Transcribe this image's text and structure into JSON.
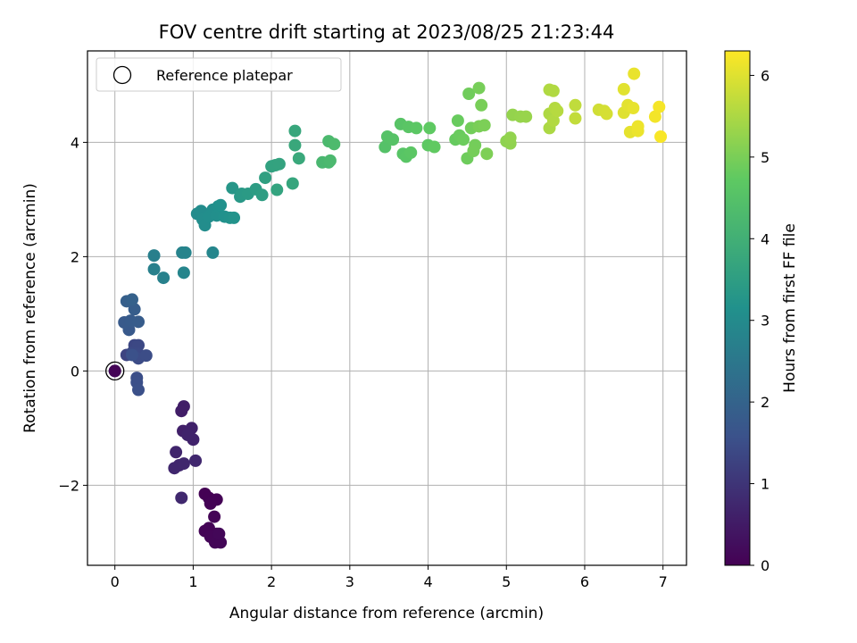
{
  "chart_data": {
    "type": "scatter",
    "title": "FOV centre drift starting at 2023/08/25 21:23:44",
    "xlabel": "Angular distance from reference (arcmin)",
    "ylabel": "Rotation from reference (arcmin)",
    "xlim": [
      -0.35,
      7.3
    ],
    "ylim": [
      -3.4,
      5.6
    ],
    "xticks": [
      0,
      1,
      2,
      3,
      4,
      5,
      6,
      7
    ],
    "yticks": [
      -2,
      0,
      2,
      4
    ],
    "xtick_labels": [
      "0",
      "1",
      "2",
      "3",
      "4",
      "5",
      "6",
      "7"
    ],
    "ytick_labels": [
      "−2",
      "0",
      "2",
      "4"
    ],
    "grid": true,
    "colormap": "viridis",
    "colormap_stops": [
      "#440154",
      "#3b528b",
      "#21918c",
      "#5ec962",
      "#fde725"
    ],
    "colorbar": {
      "label": "Hours from first FF file",
      "range": [
        0,
        6.3
      ],
      "ticks": [
        0,
        1,
        2,
        3,
        4,
        5,
        6
      ],
      "tick_labels": [
        "0",
        "1",
        "2",
        "3",
        "4",
        "5",
        "6"
      ]
    },
    "legend": {
      "entries": [
        "Reference platepar"
      ],
      "placement": "top-left"
    },
    "reference_point": {
      "x": 0,
      "y": 0,
      "t": 0.05
    },
    "points": [
      {
        "x": 1.15,
        "y": -2.15,
        "t": 0.0
      },
      {
        "x": 1.2,
        "y": -2.22,
        "t": 0.0
      },
      {
        "x": 1.3,
        "y": -2.25,
        "t": 0.02
      },
      {
        "x": 1.22,
        "y": -2.32,
        "t": 0.03
      },
      {
        "x": 1.27,
        "y": -2.55,
        "t": 0.05
      },
      {
        "x": 1.15,
        "y": -2.8,
        "t": 0.05
      },
      {
        "x": 1.2,
        "y": -2.75,
        "t": 0.06
      },
      {
        "x": 1.3,
        "y": -2.85,
        "t": 0.07
      },
      {
        "x": 1.22,
        "y": -2.9,
        "t": 0.08
      },
      {
        "x": 1.28,
        "y": -3.0,
        "t": 0.1
      },
      {
        "x": 1.35,
        "y": -3.0,
        "t": 0.1
      },
      {
        "x": 1.33,
        "y": -2.85,
        "t": 0.12
      },
      {
        "x": 0.88,
        "y": -0.62,
        "t": 0.55
      },
      {
        "x": 0.85,
        "y": -0.7,
        "t": 0.55
      },
      {
        "x": 0.87,
        "y": -1.05,
        "t": 0.6
      },
      {
        "x": 0.95,
        "y": -1.05,
        "t": 0.62
      },
      {
        "x": 0.98,
        "y": -1.0,
        "t": 0.63
      },
      {
        "x": 1.0,
        "y": -1.2,
        "t": 0.65
      },
      {
        "x": 0.93,
        "y": -1.12,
        "t": 0.66
      },
      {
        "x": 0.78,
        "y": -1.42,
        "t": 0.7
      },
      {
        "x": 0.82,
        "y": -1.65,
        "t": 0.72
      },
      {
        "x": 0.76,
        "y": -1.7,
        "t": 0.72
      },
      {
        "x": 0.88,
        "y": -1.62,
        "t": 0.73
      },
      {
        "x": 1.03,
        "y": -1.57,
        "t": 0.74
      },
      {
        "x": 0.85,
        "y": -2.22,
        "t": 0.75
      },
      {
        "x": 0.0,
        "y": 0.0,
        "t": 1.2
      },
      {
        "x": 0.15,
        "y": 0.28,
        "t": 1.3
      },
      {
        "x": 0.25,
        "y": 0.45,
        "t": 1.35
      },
      {
        "x": 0.3,
        "y": 0.45,
        "t": 1.38
      },
      {
        "x": 0.22,
        "y": 0.32,
        "t": 1.4
      },
      {
        "x": 0.3,
        "y": 0.3,
        "t": 1.42
      },
      {
        "x": 0.3,
        "y": 0.22,
        "t": 1.45
      },
      {
        "x": 0.4,
        "y": 0.27,
        "t": 1.47
      },
      {
        "x": 0.28,
        "y": -0.12,
        "t": 1.5
      },
      {
        "x": 0.28,
        "y": -0.2,
        "t": 1.52
      },
      {
        "x": 0.3,
        "y": -0.33,
        "t": 1.53
      },
      {
        "x": 0.22,
        "y": 0.28,
        "t": 1.55
      },
      {
        "x": 0.18,
        "y": 0.72,
        "t": 1.75
      },
      {
        "x": 0.12,
        "y": 0.85,
        "t": 1.78
      },
      {
        "x": 0.2,
        "y": 0.88,
        "t": 1.8
      },
      {
        "x": 0.3,
        "y": 0.86,
        "t": 1.82
      },
      {
        "x": 0.25,
        "y": 1.08,
        "t": 1.85
      },
      {
        "x": 0.15,
        "y": 1.22,
        "t": 1.9
      },
      {
        "x": 0.22,
        "y": 1.25,
        "t": 1.95
      },
      {
        "x": 0.5,
        "y": 2.02,
        "t": 2.7
      },
      {
        "x": 0.5,
        "y": 1.78,
        "t": 2.72
      },
      {
        "x": 0.62,
        "y": 1.63,
        "t": 2.75
      },
      {
        "x": 0.86,
        "y": 2.07,
        "t": 2.8
      },
      {
        "x": 0.9,
        "y": 2.07,
        "t": 2.82
      },
      {
        "x": 0.88,
        "y": 1.72,
        "t": 2.84
      },
      {
        "x": 1.25,
        "y": 2.07,
        "t": 2.88
      },
      {
        "x": 1.05,
        "y": 2.75,
        "t": 3.0
      },
      {
        "x": 1.1,
        "y": 2.8,
        "t": 3.02
      },
      {
        "x": 1.12,
        "y": 2.65,
        "t": 3.04
      },
      {
        "x": 1.15,
        "y": 2.55,
        "t": 3.05
      },
      {
        "x": 1.2,
        "y": 2.7,
        "t": 3.07
      },
      {
        "x": 1.25,
        "y": 2.82,
        "t": 3.08
      },
      {
        "x": 1.3,
        "y": 2.72,
        "t": 3.1
      },
      {
        "x": 1.32,
        "y": 2.88,
        "t": 3.12
      },
      {
        "x": 1.35,
        "y": 2.9,
        "t": 3.14
      },
      {
        "x": 1.4,
        "y": 2.7,
        "t": 3.15
      },
      {
        "x": 1.47,
        "y": 2.68,
        "t": 3.18
      },
      {
        "x": 1.52,
        "y": 2.68,
        "t": 3.2
      },
      {
        "x": 1.5,
        "y": 3.2,
        "t": 3.3
      },
      {
        "x": 1.6,
        "y": 3.05,
        "t": 3.35
      },
      {
        "x": 1.62,
        "y": 3.1,
        "t": 3.37
      },
      {
        "x": 1.7,
        "y": 3.1,
        "t": 3.4
      },
      {
        "x": 1.8,
        "y": 3.18,
        "t": 3.45
      },
      {
        "x": 1.88,
        "y": 3.08,
        "t": 3.5
      },
      {
        "x": 1.92,
        "y": 3.38,
        "t": 3.55
      },
      {
        "x": 2.0,
        "y": 3.58,
        "t": 3.6
      },
      {
        "x": 2.05,
        "y": 3.6,
        "t": 3.62
      },
      {
        "x": 2.1,
        "y": 3.62,
        "t": 3.64
      },
      {
        "x": 2.07,
        "y": 3.17,
        "t": 3.65
      },
      {
        "x": 2.27,
        "y": 3.28,
        "t": 3.7
      },
      {
        "x": 2.3,
        "y": 4.2,
        "t": 3.75
      },
      {
        "x": 2.3,
        "y": 3.95,
        "t": 3.78
      },
      {
        "x": 2.35,
        "y": 3.72,
        "t": 3.8
      },
      {
        "x": 2.65,
        "y": 3.65,
        "t": 4.2
      },
      {
        "x": 2.73,
        "y": 3.65,
        "t": 4.22
      },
      {
        "x": 2.75,
        "y": 3.68,
        "t": 4.25
      },
      {
        "x": 2.73,
        "y": 4.02,
        "t": 4.27
      },
      {
        "x": 2.8,
        "y": 3.97,
        "t": 4.3
      },
      {
        "x": 3.45,
        "y": 3.92,
        "t": 4.5
      },
      {
        "x": 3.48,
        "y": 4.1,
        "t": 4.52
      },
      {
        "x": 3.55,
        "y": 4.05,
        "t": 4.54
      },
      {
        "x": 3.65,
        "y": 4.32,
        "t": 4.56
      },
      {
        "x": 3.68,
        "y": 3.8,
        "t": 4.58
      },
      {
        "x": 3.72,
        "y": 3.75,
        "t": 4.6
      },
      {
        "x": 3.75,
        "y": 4.27,
        "t": 4.62
      },
      {
        "x": 3.78,
        "y": 3.82,
        "t": 4.64
      },
      {
        "x": 3.85,
        "y": 4.25,
        "t": 4.66
      },
      {
        "x": 4.0,
        "y": 3.95,
        "t": 4.7
      },
      {
        "x": 4.02,
        "y": 4.25,
        "t": 4.72
      },
      {
        "x": 4.08,
        "y": 3.92,
        "t": 4.74
      },
      {
        "x": 4.35,
        "y": 4.05,
        "t": 4.8
      },
      {
        "x": 4.38,
        "y": 4.38,
        "t": 4.82
      },
      {
        "x": 4.4,
        "y": 4.12,
        "t": 4.84
      },
      {
        "x": 4.45,
        "y": 4.05,
        "t": 4.86
      },
      {
        "x": 4.5,
        "y": 3.72,
        "t": 4.88
      },
      {
        "x": 4.52,
        "y": 4.85,
        "t": 4.9
      },
      {
        "x": 4.55,
        "y": 4.25,
        "t": 4.92
      },
      {
        "x": 4.6,
        "y": 3.95,
        "t": 4.94
      },
      {
        "x": 4.58,
        "y": 3.85,
        "t": 4.95
      },
      {
        "x": 4.65,
        "y": 4.95,
        "t": 4.97
      },
      {
        "x": 4.68,
        "y": 4.65,
        "t": 4.98
      },
      {
        "x": 4.65,
        "y": 4.28,
        "t": 5.0
      },
      {
        "x": 4.72,
        "y": 4.3,
        "t": 5.02
      },
      {
        "x": 4.75,
        "y": 3.8,
        "t": 5.04
      },
      {
        "x": 5.0,
        "y": 4.02,
        "t": 5.2
      },
      {
        "x": 5.05,
        "y": 3.98,
        "t": 5.22
      },
      {
        "x": 5.05,
        "y": 4.08,
        "t": 5.24
      },
      {
        "x": 5.08,
        "y": 4.48,
        "t": 5.26
      },
      {
        "x": 5.18,
        "y": 4.45,
        "t": 5.28
      },
      {
        "x": 5.25,
        "y": 4.45,
        "t": 5.3
      },
      {
        "x": 5.55,
        "y": 4.25,
        "t": 5.5
      },
      {
        "x": 5.55,
        "y": 4.5,
        "t": 5.52
      },
      {
        "x": 5.55,
        "y": 4.92,
        "t": 5.54
      },
      {
        "x": 5.6,
        "y": 4.9,
        "t": 5.55
      },
      {
        "x": 5.6,
        "y": 4.38,
        "t": 5.56
      },
      {
        "x": 5.62,
        "y": 4.6,
        "t": 5.58
      },
      {
        "x": 5.65,
        "y": 4.55,
        "t": 5.6
      },
      {
        "x": 5.88,
        "y": 4.65,
        "t": 5.7
      },
      {
        "x": 5.88,
        "y": 4.42,
        "t": 5.72
      },
      {
        "x": 6.18,
        "y": 4.57,
        "t": 5.85
      },
      {
        "x": 6.25,
        "y": 4.55,
        "t": 5.88
      },
      {
        "x": 6.28,
        "y": 4.5,
        "t": 5.9
      },
      {
        "x": 6.5,
        "y": 4.52,
        "t": 6.0
      },
      {
        "x": 6.5,
        "y": 4.93,
        "t": 6.02
      },
      {
        "x": 6.55,
        "y": 4.65,
        "t": 6.04
      },
      {
        "x": 6.58,
        "y": 4.18,
        "t": 6.06
      },
      {
        "x": 6.62,
        "y": 4.6,
        "t": 6.08
      },
      {
        "x": 6.63,
        "y": 5.2,
        "t": 6.1
      },
      {
        "x": 6.68,
        "y": 4.2,
        "t": 6.12
      },
      {
        "x": 6.68,
        "y": 4.28,
        "t": 6.14
      },
      {
        "x": 6.9,
        "y": 4.45,
        "t": 6.2
      },
      {
        "x": 6.95,
        "y": 4.62,
        "t": 6.22
      },
      {
        "x": 6.97,
        "y": 4.1,
        "t": 6.25
      }
    ]
  }
}
